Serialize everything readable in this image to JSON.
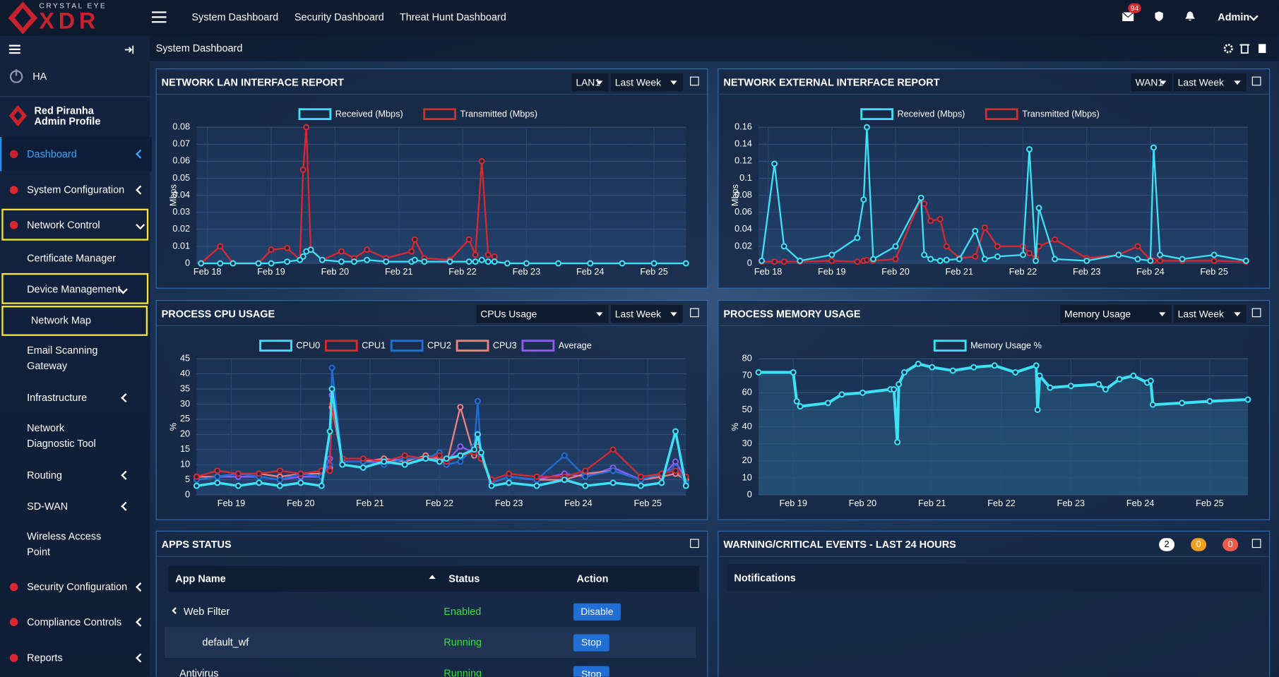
{
  "header": {
    "logo_top": "CRYSTAL EYE",
    "logo_main": "XDR",
    "nav": [
      "System Dashboard",
      "Security Dashboard",
      "Threat Hunt Dashboard"
    ],
    "mail_badge": "94",
    "user": "Admin"
  },
  "sidebar": {
    "ha": "HA",
    "profile_name": "Red Piranha",
    "profile_role": "Admin Profile",
    "menu": [
      "Dashboard",
      "System Configuration",
      "Network Control",
      "Certificate Manager",
      "Device Management",
      "Network Map",
      "Email Scanning Gateway",
      "Infrastructure",
      "Network Diagnostic Tool",
      "Routing",
      "SD-WAN",
      "Wireless Access Point",
      "Security Configuration",
      "Compliance Controls",
      "Reports"
    ]
  },
  "breadcrumb": "System Dashboard",
  "chart_data": [
    {
      "type": "line",
      "title": "NETWORK LAN INTERFACE REPORT",
      "filters": [
        "LAN1",
        "Last Week"
      ],
      "y_label": "Mbps",
      "x": [
        17.9,
        18.2,
        18.4,
        18.8,
        19.0,
        19.25,
        19.45,
        19.5,
        19.55,
        19.62,
        19.8,
        20.1,
        20.3,
        20.5,
        20.8,
        21.2,
        21.25,
        21.4,
        21.8,
        22.1,
        22.2,
        22.3,
        22.4,
        22.5,
        22.7,
        23.0,
        23.5,
        24.0,
        24.5,
        25.0,
        25.5
      ],
      "series": [
        {
          "name": "Received (Mbps)",
          "color": "#3ee0f5",
          "values": [
            0,
            0,
            0,
            0,
            0,
            0.001,
            0.002,
            0.004,
            0.007,
            0.008,
            0.002,
            0.001,
            0.001,
            0.002,
            0.001,
            0.001,
            0.002,
            0.001,
            0.001,
            0.001,
            0.001,
            0.002,
            0.001,
            0.001,
            0,
            0,
            0,
            0,
            0,
            0,
            0
          ]
        },
        {
          "name": "Transmitted (Mbps)",
          "color": "#d9282f",
          "values": [
            0,
            0.01,
            0,
            0,
            0.008,
            0.009,
            0.002,
            0.055,
            0.08,
            0.008,
            0.002,
            0.007,
            0.003,
            0.008,
            0.003,
            0.007,
            0.014,
            0.003,
            0.002,
            0.014,
            0.005,
            0.06,
            0.005,
            0.004,
            null,
            null,
            null,
            null,
            null,
            null,
            null
          ]
        }
      ],
      "xlim": [
        17.83,
        25.5
      ],
      "ylim": [
        0,
        0.08
      ],
      "yticks": [
        0,
        0.01,
        0.02,
        0.03,
        0.04,
        0.05,
        0.06,
        0.07,
        0.08
      ],
      "xticks": [
        {
          "value": 18,
          "label": "Feb 18"
        },
        {
          "value": 19,
          "label": "Feb 19"
        },
        {
          "value": 20,
          "label": "Feb 20"
        },
        {
          "value": 21,
          "label": "Feb 21"
        },
        {
          "value": 22,
          "label": "Feb 22"
        },
        {
          "value": 23,
          "label": "Feb 23"
        },
        {
          "value": 24,
          "label": "Feb 24"
        },
        {
          "value": 25,
          "label": "Feb 25"
        }
      ],
      "grid": true
    },
    {
      "type": "line",
      "title": "NETWORK EXTERNAL INTERFACE REPORT",
      "filters": [
        "WAN1",
        "Last Week"
      ],
      "y_label": "Mbps",
      "x": [
        17.9,
        18.1,
        18.25,
        18.5,
        19.0,
        19.4,
        19.5,
        19.55,
        19.65,
        20.0,
        20.4,
        20.45,
        20.55,
        20.7,
        20.8,
        21.0,
        21.25,
        21.4,
        21.6,
        22.0,
        22.1,
        22.2,
        22.25,
        22.5,
        23.0,
        23.5,
        23.8,
        24.0,
        24.05,
        24.15,
        24.5,
        25.0,
        25.5
      ],
      "series": [
        {
          "name": "Received (Mbps)",
          "color": "#3ee0f5",
          "values": [
            0.003,
            0.117,
            0.02,
            0.003,
            0.01,
            0.03,
            0.075,
            0.16,
            0.005,
            0.02,
            0.077,
            0.01,
            0.005,
            0.003,
            0.004,
            0.005,
            0.038,
            0.005,
            0.008,
            0.01,
            0.134,
            0.003,
            0.065,
            0.005,
            0.003,
            0.01,
            0.005,
            0.003,
            0.136,
            0.01,
            0.005,
            0.01,
            0.003
          ]
        },
        {
          "name": "Transmitted (Mbps)",
          "color": "#d9282f",
          "values": [
            0.002,
            0.002,
            0.002,
            0.002,
            0.003,
            0.002,
            0.003,
            0.004,
            0.003,
            0.005,
            0.076,
            0.07,
            0.05,
            0.052,
            0.02,
            0.006,
            0.008,
            0.042,
            0.02,
            0.02,
            0.012,
            0.006,
            0.02,
            0.028,
            0.006,
            0.01,
            0.02,
            0.004,
            0.003,
            0.003,
            0.003,
            0.003,
            0.002
          ]
        }
      ],
      "xlim": [
        17.85,
        25.53
      ],
      "ylim": [
        0,
        0.16
      ],
      "yticks": [
        0,
        0.02,
        0.04,
        0.06,
        0.08,
        0.1,
        0.12,
        0.14,
        0.16
      ],
      "xticks": [
        {
          "value": 18,
          "label": "Feb 18"
        },
        {
          "value": 19,
          "label": "Feb 19"
        },
        {
          "value": 20,
          "label": "Feb 20"
        },
        {
          "value": 21,
          "label": "Feb 21"
        },
        {
          "value": 22,
          "label": "Feb 22"
        },
        {
          "value": 23,
          "label": "Feb 23"
        },
        {
          "value": 24,
          "label": "Feb 24"
        },
        {
          "value": 25,
          "label": "Feb 25"
        }
      ],
      "grid": true
    },
    {
      "type": "line",
      "title": "PROCESS CPU USAGE",
      "filters": [
        "CPUs Usage",
        "Last Week"
      ],
      "y_label": "%",
      "x": [
        18.5,
        18.8,
        19.1,
        19.4,
        19.7,
        20.0,
        20.3,
        20.42,
        20.45,
        20.6,
        20.9,
        21.2,
        21.5,
        21.8,
        22.0,
        22.1,
        22.3,
        22.5,
        22.55,
        22.6,
        22.75,
        23.0,
        23.4,
        23.8,
        24.1,
        24.5,
        24.9,
        25.2,
        25.4,
        25.55
      ],
      "series": [
        {
          "name": "CPU0",
          "color": "#3ee0f5",
          "values": [
            3,
            4,
            3,
            4,
            3,
            4,
            3,
            21,
            35,
            10,
            9,
            11,
            10,
            12,
            11,
            12,
            13,
            15,
            20,
            14,
            3,
            4,
            3,
            5,
            3,
            4,
            3,
            4,
            21,
            3
          ]
        },
        {
          "name": "CPU1",
          "color": "#d9282f",
          "values": [
            6,
            8,
            7,
            7,
            8,
            7,
            8,
            8,
            30,
            12,
            12,
            11,
            13,
            12,
            13,
            11,
            13,
            14,
            15,
            12,
            5,
            7,
            6,
            6,
            8,
            15,
            6,
            7,
            8,
            6
          ]
        },
        {
          "name": "CPU2",
          "color": "#1f6fd6",
          "values": [
            5,
            6,
            7,
            6,
            5,
            7,
            6,
            10,
            42,
            11,
            11,
            10,
            12,
            12,
            14,
            10,
            11,
            16,
            31,
            13,
            4,
            6,
            5,
            13,
            6,
            8,
            5,
            7,
            9,
            4
          ]
        },
        {
          "name": "CPU3",
          "color": "#f08080",
          "values": [
            6,
            6,
            7,
            7,
            6,
            7,
            7,
            9,
            29,
            11,
            11,
            12,
            11,
            13,
            12,
            10,
            29,
            13,
            16,
            12,
            4,
            6,
            5,
            5,
            7,
            8,
            5,
            6,
            7,
            5
          ]
        },
        {
          "name": "Average",
          "color": "#8b5cf6",
          "values": [
            5,
            6,
            6,
            6,
            5,
            6,
            6,
            12,
            33,
            11,
            11,
            11,
            12,
            12,
            12,
            11,
            16,
            14,
            20,
            13,
            4,
            6,
            5,
            7,
            6,
            9,
            5,
            6,
            11,
            5
          ]
        }
      ],
      "xlim": [
        18.5,
        25.55
      ],
      "ylim": [
        0,
        45
      ],
      "yticks": [
        0,
        5,
        10,
        15,
        20,
        25,
        30,
        35,
        40,
        45
      ],
      "xticks": [
        {
          "value": 19,
          "label": "Feb 19"
        },
        {
          "value": 20,
          "label": "Feb 20"
        },
        {
          "value": 21,
          "label": "Feb 21"
        },
        {
          "value": 22,
          "label": "Feb 22"
        },
        {
          "value": 23,
          "label": "Feb 23"
        },
        {
          "value": 24,
          "label": "Feb 24"
        },
        {
          "value": 25,
          "label": "Feb 25"
        }
      ],
      "grid": true
    },
    {
      "type": "line",
      "title": "PROCESS MEMORY USAGE",
      "filters": [
        "Memory Usage",
        "Last Week"
      ],
      "y_label": "%",
      "area": true,
      "x": [
        18.5,
        19.0,
        19.05,
        19.1,
        19.5,
        19.7,
        20.0,
        20.4,
        20.45,
        20.5,
        20.52,
        20.6,
        20.8,
        21.0,
        21.3,
        21.6,
        21.9,
        22.2,
        22.5,
        22.52,
        22.55,
        22.7,
        23.0,
        23.4,
        23.5,
        23.7,
        23.9,
        24.1,
        24.15,
        24.18,
        24.6,
        25.0,
        25.55
      ],
      "series": [
        {
          "name": "Memory Usage %",
          "color": "#3ee0f5",
          "values": [
            72,
            72,
            55,
            52,
            54,
            59,
            60,
            62,
            62,
            31,
            65,
            72,
            77,
            75,
            73,
            75,
            76,
            72,
            76,
            50,
            70,
            63,
            64,
            65,
            62,
            68,
            70,
            66,
            67,
            53,
            54,
            55,
            56
          ]
        }
      ],
      "xlim": [
        18.5,
        25.55
      ],
      "ylim": [
        0,
        80
      ],
      "yticks": [
        0,
        10,
        20,
        30,
        40,
        50,
        60,
        70,
        80
      ],
      "xticks": [
        {
          "value": 19,
          "label": "Feb 19"
        },
        {
          "value": 20,
          "label": "Feb 20"
        },
        {
          "value": 21,
          "label": "Feb 21"
        },
        {
          "value": 22,
          "label": "Feb 22"
        },
        {
          "value": 23,
          "label": "Feb 23"
        },
        {
          "value": 24,
          "label": "Feb 24"
        },
        {
          "value": 25,
          "label": "Feb 25"
        }
      ],
      "grid": true
    }
  ],
  "apps_status": {
    "title": "APPS STATUS",
    "columns": [
      "App Name",
      "Status",
      "Action"
    ],
    "rows": [
      [
        "Web Filter",
        "Enabled",
        "Disable"
      ],
      [
        "default_wf",
        "Running",
        "Stop"
      ],
      [
        "Antivirus",
        "Running",
        "Stop"
      ]
    ]
  },
  "events": {
    "title": "WARNING/CRITICAL EVENTS - LAST 24 HOURS",
    "badges": [
      "2",
      "0",
      "0"
    ],
    "notifications": "Notifications"
  }
}
